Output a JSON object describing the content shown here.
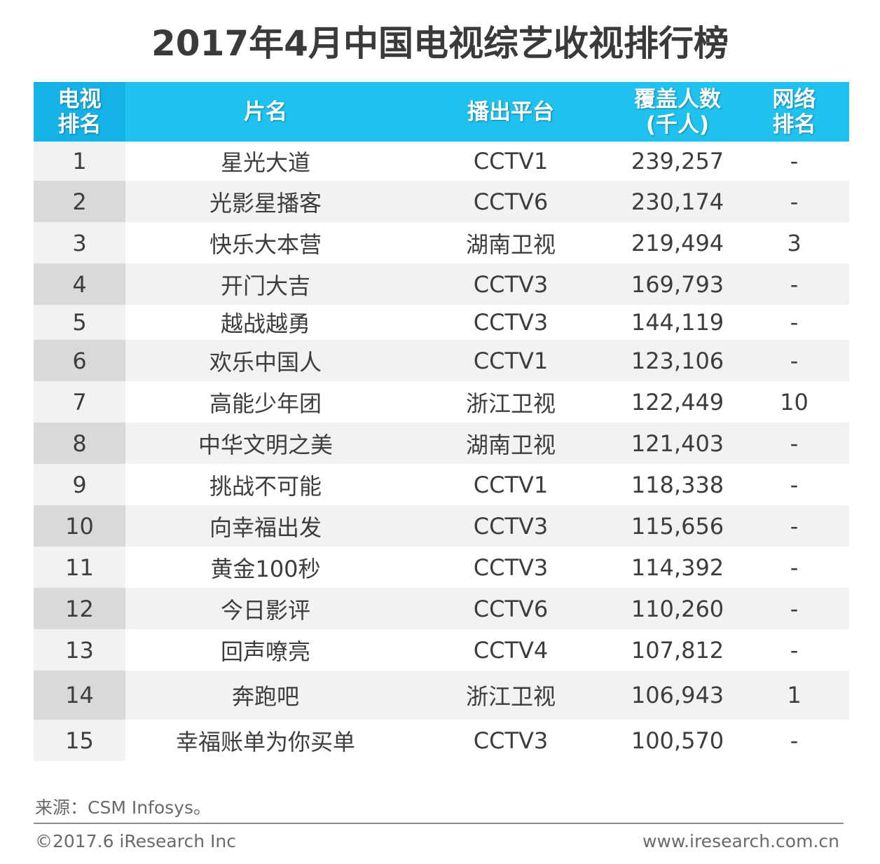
{
  "title": "2017年4月中国电视综艺收视排行榜",
  "chart_data": {
    "type": "table",
    "title": "2017年4月中国电视综艺收视排行榜",
    "columns": [
      "电视排名",
      "片名",
      "播出平台",
      "覆盖人数(千人)",
      "网络排名"
    ],
    "header": {
      "rank_line1": "电视",
      "rank_line2": "排名",
      "name": "片名",
      "platform": "播出平台",
      "coverage_line1": "覆盖人数",
      "coverage_line2": "(千人)",
      "net_line1": "网络",
      "net_line2": "排名"
    },
    "rows": [
      {
        "rank": "1",
        "name": "星光大道",
        "platform": "CCTV1",
        "coverage": "239,257",
        "net": "-"
      },
      {
        "rank": "2",
        "name": "光影星播客",
        "platform": "CCTV6",
        "coverage": "230,174",
        "net": "-"
      },
      {
        "rank": "3",
        "name": "快乐大本营",
        "platform": "湖南卫视",
        "coverage": "219,494",
        "net": "3"
      },
      {
        "rank": "4",
        "name": "开门大吉",
        "platform": "CCTV3",
        "coverage": "169,793",
        "net": "-"
      },
      {
        "rank": "5",
        "name": "越战越勇",
        "platform": "CCTV3",
        "coverage": "144,119",
        "net": "-"
      },
      {
        "rank": "6",
        "name": "欢乐中国人",
        "platform": "CCTV1",
        "coverage": "123,106",
        "net": "-"
      },
      {
        "rank": "7",
        "name": "高能少年团",
        "platform": "浙江卫视",
        "coverage": "122,449",
        "net": "10"
      },
      {
        "rank": "8",
        "name": "中华文明之美",
        "platform": "湖南卫视",
        "coverage": "121,403",
        "net": "-"
      },
      {
        "rank": "9",
        "name": "挑战不可能",
        "platform": "CCTV1",
        "coverage": "118,338",
        "net": "-"
      },
      {
        "rank": "10",
        "name": "向幸福出发",
        "platform": "CCTV3",
        "coverage": "115,656",
        "net": "-"
      },
      {
        "rank": "11",
        "name": "黄金100秒",
        "platform": "CCTV3",
        "coverage": "114,392",
        "net": "-"
      },
      {
        "rank": "12",
        "name": "今日影评",
        "platform": "CCTV6",
        "coverage": "110,260",
        "net": "-"
      },
      {
        "rank": "13",
        "name": "回声嘹亮",
        "platform": "CCTV4",
        "coverage": "107,812",
        "net": "-"
      },
      {
        "rank": "14",
        "name": "奔跑吧",
        "platform": "浙江卫视",
        "coverage": "106,943",
        "net": "1"
      },
      {
        "rank": "15",
        "name": "幸福账单为你买单",
        "platform": "CCTV3",
        "coverage": "100,570",
        "net": "-"
      }
    ]
  },
  "colors": {
    "header": "#1fc1ee",
    "header_rank": "#14b2e6",
    "row_alt": "#f2f2f2",
    "rank_alt": "#d9d9d9"
  },
  "footer": {
    "source": "来源：CSM Infosys。",
    "copyright": "©2017.6 iResearch Inc",
    "website": "www.iresearch.com.cn"
  }
}
